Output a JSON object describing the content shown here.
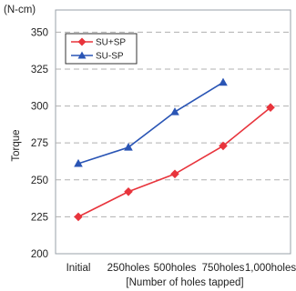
{
  "chart_data": {
    "type": "line",
    "unit": "(N-cm)",
    "ylabel": "Torque",
    "xlabel": "[Number of holes tapped]",
    "categories": [
      "Initial",
      "250holes",
      "500holes",
      "750holes",
      "1,000holes"
    ],
    "ylim": [
      200,
      365
    ],
    "yticks": [
      200,
      225,
      250,
      275,
      300,
      325,
      350
    ],
    "grid": "horizontal dashed",
    "legend_position": "top-left",
    "series": [
      {
        "name": "SU+SP",
        "color": "#e8343c",
        "marker": "diamond",
        "values": [
          225,
          242,
          254,
          273,
          299
        ]
      },
      {
        "name": "SU-SP",
        "color": "#2a55b5",
        "marker": "triangle",
        "values": [
          261,
          272,
          296,
          316,
          null
        ]
      }
    ]
  }
}
